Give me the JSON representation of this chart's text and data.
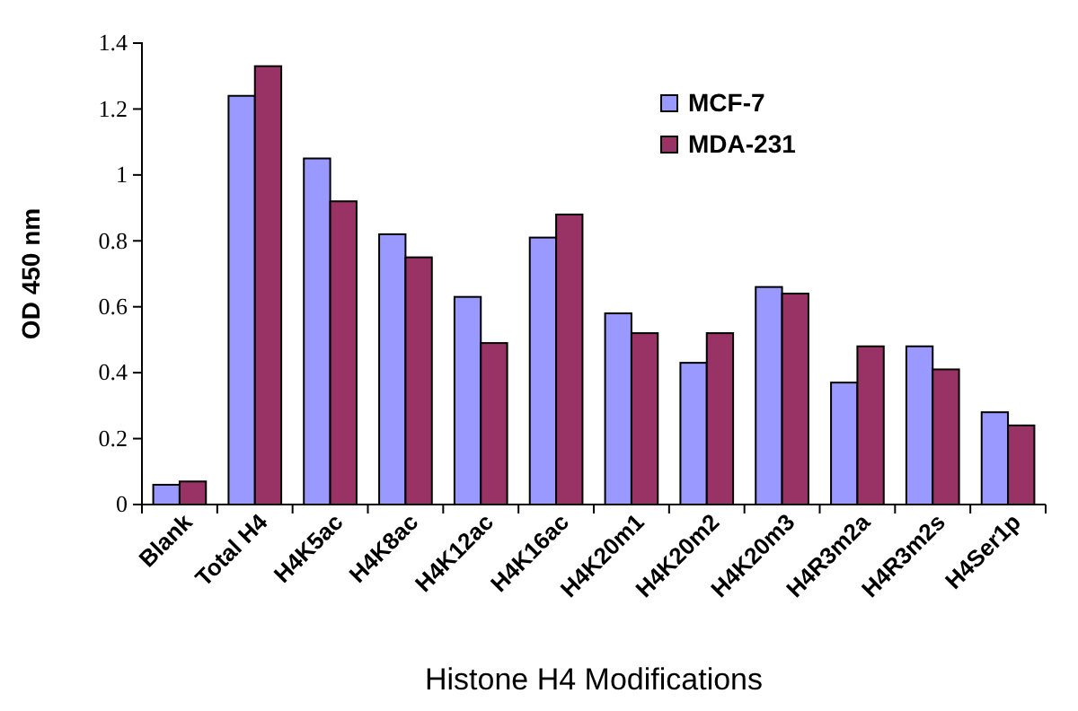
{
  "chart_data": {
    "type": "bar",
    "xlabel": "Histone H4 Modifications",
    "ylabel": "OD 450 nm",
    "categories": [
      "Blank",
      "Total H4",
      "H4K5ac",
      "H4K8ac",
      "H4K12ac",
      "H4K16ac",
      "H4K20m1",
      "H4K20m2",
      "H4K20m3",
      "H4R3m2a",
      "H4R3m2s",
      "H4Ser1p"
    ],
    "series": [
      {
        "name": "MCF-7",
        "color": "#9999ff",
        "values": [
          0.06,
          1.24,
          1.05,
          0.82,
          0.63,
          0.81,
          0.58,
          0.43,
          0.66,
          0.37,
          0.48,
          0.28
        ]
      },
      {
        "name": "MDA-231",
        "color": "#993366",
        "values": [
          0.07,
          1.33,
          0.92,
          0.75,
          0.49,
          0.88,
          0.52,
          0.52,
          0.64,
          0.48,
          0.41,
          0.24
        ]
      }
    ],
    "ylim": [
      0,
      1.4
    ],
    "yticks": [
      0,
      0.2,
      0.4,
      0.6,
      0.8,
      1,
      1.2,
      1.4
    ],
    "grid": false,
    "legend": "top right"
  }
}
